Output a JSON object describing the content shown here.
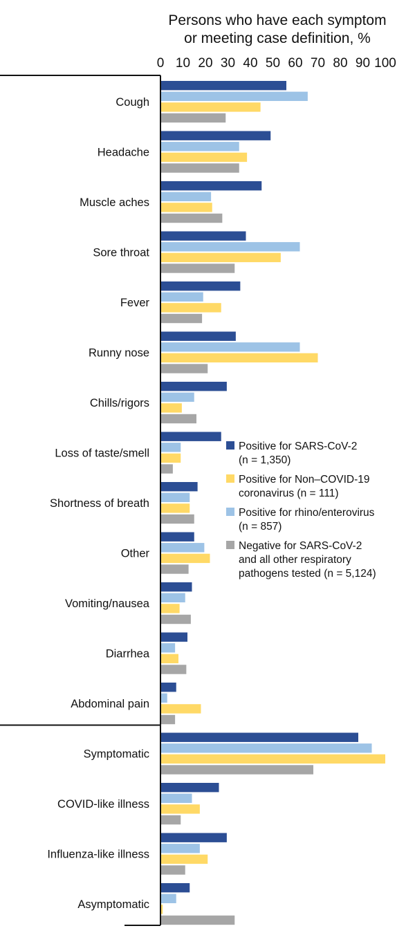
{
  "chart_data": {
    "type": "bar",
    "orientation": "horizontal",
    "title_lines": [
      "Persons who have each symptom",
      "or meeting case definition, %"
    ],
    "x_ticks": [
      0,
      10,
      20,
      30,
      40,
      50,
      60,
      70,
      80,
      90,
      100
    ],
    "xlim": [
      0,
      100
    ],
    "categories": [
      "Cough",
      "Headache",
      "Muscle aches",
      "Sore throat",
      "Fever",
      "Runny nose",
      "Chills/rigors",
      "Loss of taste/smell",
      "Shortness of breath",
      "Other",
      "Vomiting/nausea",
      "Diarrhea",
      "Abdominal pain",
      "Symptomatic",
      "COVID-like illness",
      "Influenza-like illness",
      "Asymptomatic"
    ],
    "group_divider_after_index": 12,
    "series": [
      {
        "name": "Positive for SARS-CoV-2",
        "n_label": "(n = 1,350)",
        "color": "#2c4e94",
        "values": [
          56,
          49,
          45,
          38,
          35.5,
          33.5,
          29.5,
          27,
          16.5,
          15,
          14,
          12,
          7,
          88,
          26,
          29.5,
          13
        ]
      },
      {
        "name": "Positive for rhino/enterovirus",
        "n_label": "(n = 857)",
        "color": "#9dc3e6",
        "values": [
          65.5,
          35,
          22.5,
          62,
          19,
          62,
          15,
          9,
          13,
          19.5,
          11,
          6.5,
          3,
          94,
          14,
          17.5,
          7
        ]
      },
      {
        "name": "Positive for Non–COVID-19 coronavirus",
        "n_label": "coronavirus (n = 111)",
        "color": "#ffd966",
        "values": [
          44.5,
          38.5,
          23,
          53.5,
          27,
          70,
          9.5,
          9,
          13,
          22,
          8.5,
          8,
          18,
          100,
          17.5,
          21,
          1
        ]
      },
      {
        "name": "Negative for SARS-CoV-2 and all other respiratory pathogens tested",
        "n_label": "pathogens tested (n = 5,124)",
        "color": "#a6a6a6",
        "values": [
          29,
          35,
          27.5,
          33,
          18.5,
          21,
          16,
          5.5,
          15,
          12.5,
          13.5,
          11.5,
          6.5,
          68,
          9,
          11,
          33
        ]
      }
    ],
    "legend": {
      "placement": "middle-right",
      "entries": [
        {
          "lines": [
            "Positive for SARS-CoV-2",
            "(n = 1,350)"
          ],
          "color": "#2c4e94"
        },
        {
          "lines": [
            "Positive for Non–COVID-19",
            "coronavirus (n = 111)"
          ],
          "color": "#ffd966"
        },
        {
          "lines": [
            "Positive for rhino/enterovirus",
            "(n = 857)"
          ],
          "color": "#9dc3e6"
        },
        {
          "lines": [
            "Negative for SARS-CoV-2",
            "and all other respiratory",
            "pathogens tested (n = 5,124)"
          ],
          "color": "#a6a6a6"
        }
      ]
    }
  }
}
